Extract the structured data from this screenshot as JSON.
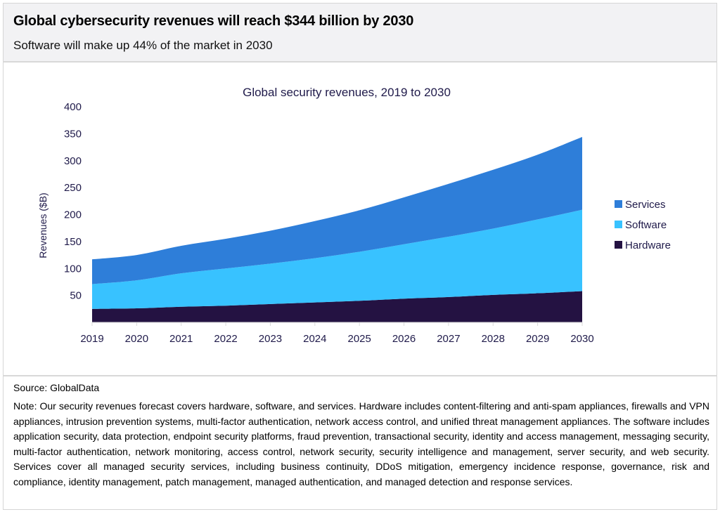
{
  "header": {
    "title": "Global cybersecurity revenues will reach $344 billion by 2030",
    "subtitle": "Software will make up 44% of the market in 2030"
  },
  "chart_data": {
    "type": "area",
    "stacked": true,
    "title": "Global security revenues, 2019 to 2030",
    "xlabel": "",
    "ylabel": "Revenues ($B)",
    "ylim": [
      0,
      400
    ],
    "yticks": [
      50,
      100,
      150,
      200,
      250,
      300,
      350,
      400
    ],
    "categories": [
      "2019",
      "2020",
      "2021",
      "2022",
      "2023",
      "2024",
      "2025",
      "2026",
      "2027",
      "2028",
      "2029",
      "2030"
    ],
    "grid": false,
    "legend_position": "right",
    "series": [
      {
        "name": "Hardware",
        "color": "#241242",
        "values": [
          25,
          26,
          29,
          31,
          34,
          37,
          40,
          44,
          47,
          51,
          54,
          58
        ]
      },
      {
        "name": "Software",
        "color": "#38c2ff",
        "values": [
          46,
          52,
          62,
          69,
          75,
          82,
          91,
          101,
          112,
          123,
          137,
          151
        ]
      },
      {
        "name": "Services",
        "color": "#2e7ed9",
        "values": [
          46,
          47,
          51,
          55,
          61,
          69,
          77,
          87,
          98,
          109,
          120,
          135
        ]
      }
    ],
    "legend_order": [
      "Services",
      "Software",
      "Hardware"
    ]
  },
  "footer": {
    "source": "Source: GlobalData",
    "note": "Note: Our security revenues forecast covers hardware, software, and services. Hardware includes content-filtering and anti-spam appliances, firewalls and VPN appliances, intrusion prevention systems, multi-factor authentication, network access control, and unified threat management appliances. The software includes application security, data protection, endpoint security platforms, fraud prevention, transactional security, identity and access management, messaging security, multi-factor authentication, network monitoring, access control, network security, security intelligence and management, server security, and web security. Services cover all managed security services, including business continuity, DDoS mitigation, emergency incidence response, governance, risk and compliance, identity management, patch management, managed authentication, and managed detection and response services."
  }
}
